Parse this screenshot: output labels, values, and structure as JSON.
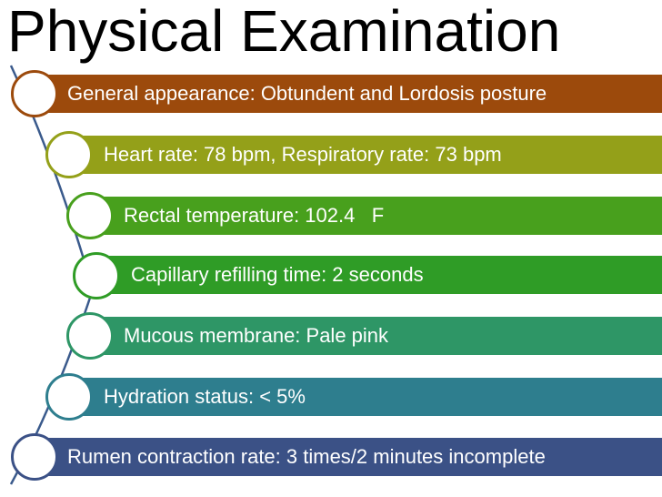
{
  "title": "Physical Examination",
  "items": [
    {
      "text": "General appearance: Obtundent and Lordosis posture",
      "color": "#9c4a0c"
    },
    {
      "text": "Heart rate: 78 bpm, Respiratory rate: 73 bpm",
      "color": "#94a019"
    },
    {
      "text": "Rectal temperature: 102.4   F",
      "color": "#48a01d"
    },
    {
      "text": "Capillary refilling time: 2 seconds",
      "color": "#2f9c26"
    },
    {
      "text": "Mucous membrane: Pale pink",
      "color": "#2e9666"
    },
    {
      "text": "Hydration status: < 5%",
      "color": "#2e7e8e"
    },
    {
      "text": "Rumen contraction rate: 3 times/2 minutes incomplete",
      "color": "#3b5186"
    }
  ],
  "connector_color": "#3a5a8c"
}
